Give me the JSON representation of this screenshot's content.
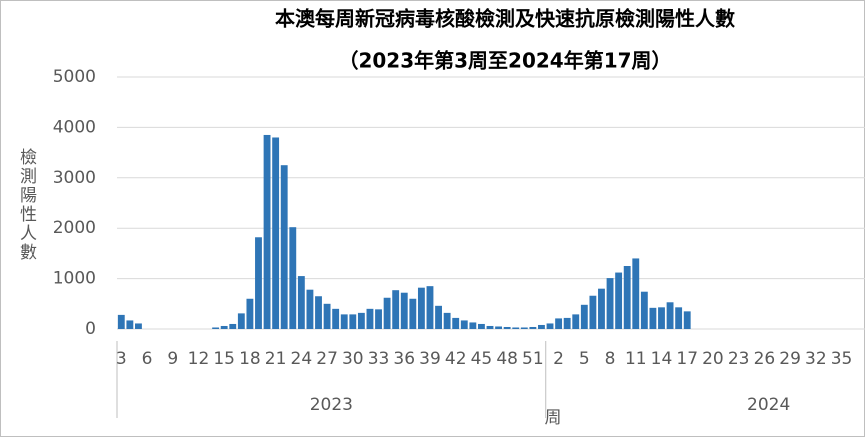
{
  "chart_data": {
    "type": "bar",
    "title": "本澳每周新冠病毒核酸檢測及快速抗原檢測陽性人數",
    "subtitle": "（2023年第3周至2024年第17周）",
    "y_label": "檢測陽性人數",
    "x_label": "周",
    "color": "#2e75b6",
    "ylim": [
      0,
      5000
    ],
    "yticks": [
      0,
      1000,
      2000,
      3000,
      4000,
      5000
    ],
    "grid": true,
    "groups": [
      {
        "name": "2023",
        "categories": [
          "3",
          null,
          null,
          "6",
          null,
          null,
          "9",
          null,
          null,
          "12",
          null,
          null,
          "15",
          null,
          null,
          "18",
          null,
          null,
          "21",
          null,
          null,
          "24",
          null,
          null,
          "27",
          null,
          null,
          "30",
          null,
          null,
          "33",
          null,
          null,
          "36",
          null,
          null,
          "39",
          null,
          null,
          "42",
          null,
          null,
          "45",
          null,
          null,
          "48",
          null,
          null,
          "51",
          null
        ],
        "values": [
          280,
          170,
          110,
          0,
          0,
          0,
          0,
          0,
          0,
          0,
          0,
          30,
          60,
          100,
          310,
          600,
          1820,
          3850,
          3800,
          3250,
          2020,
          1050,
          780,
          650,
          500,
          400,
          290,
          290,
          320,
          400,
          390,
          620,
          770,
          720,
          600,
          820,
          850,
          460,
          320,
          220,
          170,
          130,
          100,
          60,
          50,
          40,
          30,
          30,
          40,
          80
        ]
      },
      {
        "name": "2024",
        "categories": [
          null,
          "2",
          null,
          null,
          "5",
          null,
          null,
          "8",
          null,
          null,
          "11",
          null,
          null,
          "14",
          null,
          null,
          "17",
          null,
          null,
          "20",
          null,
          null,
          "23",
          null,
          null,
          "26",
          null,
          null,
          "29",
          null,
          null,
          "32",
          null,
          null,
          "35",
          null,
          null
        ],
        "values": [
          110,
          210,
          220,
          290,
          480,
          660,
          800,
          1010,
          1120,
          1250,
          1400,
          740,
          420,
          430,
          530,
          430,
          350,
          null,
          null,
          null,
          null,
          null,
          null,
          null,
          null,
          null,
          null,
          null,
          null,
          null,
          null,
          null,
          null,
          null,
          null,
          null,
          null
        ]
      }
    ]
  }
}
